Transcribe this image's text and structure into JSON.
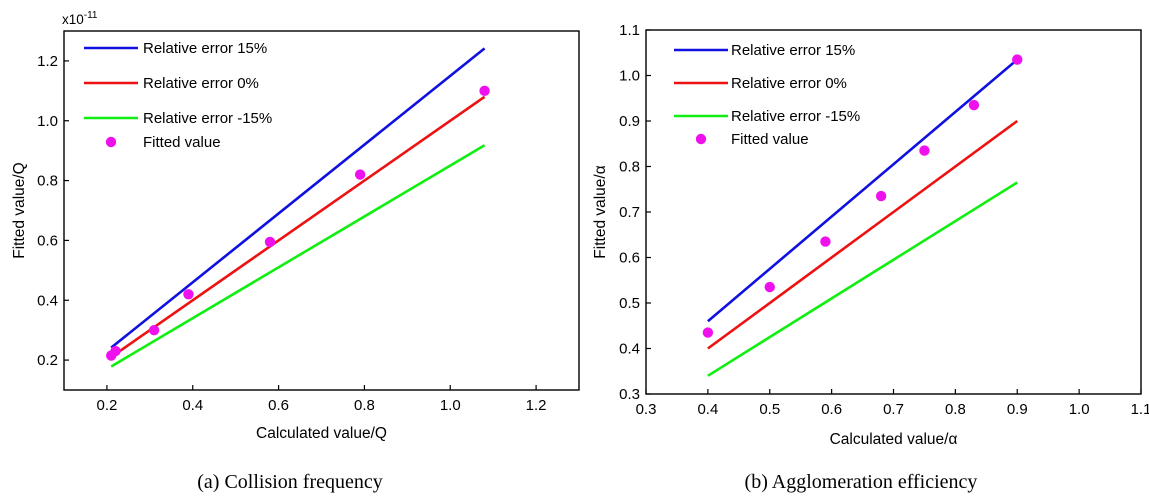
{
  "chart_data": [
    {
      "type": "line",
      "caption": "(a) Collision frequency",
      "xlabel": "Calculated value/Q",
      "ylabel": "Fitted value/Q",
      "y_multiplier_base": "x10",
      "y_multiplier_exp": "-11",
      "xlim": [
        0.1,
        1.3
      ],
      "ylim": [
        0.1,
        1.3
      ],
      "xticks": [
        0.2,
        0.4,
        0.6,
        0.8,
        1.0,
        1.2
      ],
      "xtick_labels": [
        "0.2",
        "0.4",
        "0.6",
        "0.8",
        "1.0",
        "1.2"
      ],
      "yticks": [
        0.2,
        0.4,
        0.6,
        0.8,
        1.0,
        1.2
      ],
      "ytick_labels": [
        "0.2",
        "0.4",
        "0.6",
        "0.8",
        "1.0",
        "1.2"
      ],
      "legend_position": "top-left",
      "series": [
        {
          "name": "Relative error 15%",
          "kind": "line",
          "color": "#1010e0",
          "x": [
            0.21,
            1.08
          ],
          "y": [
            0.2415,
            1.242
          ]
        },
        {
          "name": "Relative error 0%",
          "kind": "line",
          "color": "#ee1111",
          "x": [
            0.21,
            1.08
          ],
          "y": [
            0.21,
            1.08
          ]
        },
        {
          "name": "Relative error -15%",
          "kind": "line",
          "color": "#11ee11",
          "x": [
            0.21,
            1.08
          ],
          "y": [
            0.1785,
            0.918
          ]
        },
        {
          "name": "Fitted value",
          "kind": "scatter",
          "color": "#ee11ee",
          "x": [
            0.21,
            0.22,
            0.31,
            0.39,
            0.58,
            0.79,
            1.08
          ],
          "y": [
            0.215,
            0.23,
            0.3,
            0.42,
            0.595,
            0.82,
            1.1
          ]
        }
      ]
    },
    {
      "type": "line",
      "caption": "(b) Agglomeration efficiency",
      "xlabel": "Calculated value/α",
      "ylabel": "Fitted value/α",
      "xlim": [
        0.3,
        1.1
      ],
      "ylim": [
        0.3,
        1.1
      ],
      "xticks": [
        0.3,
        0.4,
        0.5,
        0.6,
        0.7,
        0.8,
        0.9,
        1.0,
        1.1
      ],
      "xtick_labels": [
        "0.3",
        "0.4",
        "0.5",
        "0.6",
        "0.7",
        "0.8",
        "0.9",
        "1.0",
        "1.1"
      ],
      "yticks": [
        0.3,
        0.4,
        0.5,
        0.6,
        0.7,
        0.8,
        0.9,
        1.0,
        1.1
      ],
      "ytick_labels": [
        "0.3",
        "0.4",
        "0.5",
        "0.6",
        "0.7",
        "0.8",
        "0.9",
        "1.0",
        "1.1"
      ],
      "legend_position": "top-left",
      "series": [
        {
          "name": "Relative error 15%",
          "kind": "line",
          "color": "#1010e0",
          "x": [
            0.4,
            0.9
          ],
          "y": [
            0.46,
            1.035
          ]
        },
        {
          "name": "Relative error 0%",
          "kind": "line",
          "color": "#ee1111",
          "x": [
            0.4,
            0.9
          ],
          "y": [
            0.4,
            0.9
          ]
        },
        {
          "name": "Relative error -15%",
          "kind": "line",
          "color": "#11ee11",
          "x": [
            0.4,
            0.9
          ],
          "y": [
            0.34,
            0.765
          ]
        },
        {
          "name": "Fitted value",
          "kind": "scatter",
          "color": "#ee11ee",
          "x": [
            0.4,
            0.5,
            0.59,
            0.68,
            0.75,
            0.83,
            0.9
          ],
          "y": [
            0.435,
            0.535,
            0.635,
            0.735,
            0.835,
            0.935,
            1.035
          ]
        }
      ]
    }
  ]
}
